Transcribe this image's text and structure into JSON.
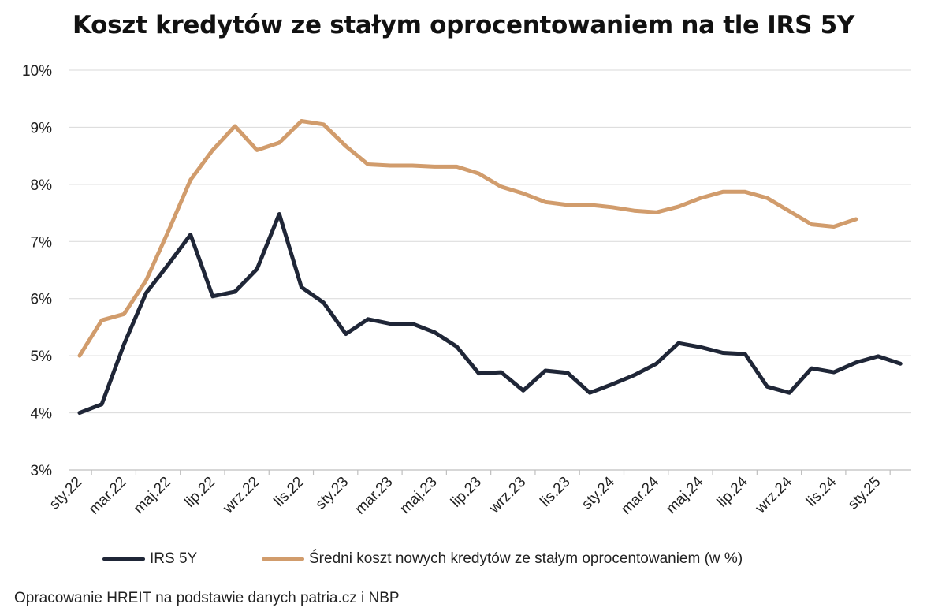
{
  "chart_data": {
    "type": "line",
    "title": "Koszt kredytów ze stałym oprocentowaniem na tle IRS 5Y",
    "xlabel": "",
    "ylabel": "",
    "ylim": [
      3,
      10
    ],
    "y_ticks": [
      "3%",
      "4%",
      "5%",
      "6%",
      "7%",
      "8%",
      "9%",
      "10%"
    ],
    "x_tick_labels": [
      "sty.22",
      "mar.22",
      "maj.22",
      "lip.22",
      "wrz.22",
      "lis.22",
      "sty.23",
      "mar.23",
      "maj.23",
      "lip.23",
      "wrz.23",
      "lis.23",
      "sty.24",
      "mar.24",
      "maj.24",
      "lip.24",
      "wrz.24",
      "lis.24",
      "sty.25"
    ],
    "months": [
      "sty.22",
      "lut.22",
      "mar.22",
      "kwi.22",
      "maj.22",
      "cze.22",
      "lip.22",
      "sie.22",
      "wrz.22",
      "paź.22",
      "lis.22",
      "gru.22",
      "sty.23",
      "lut.23",
      "mar.23",
      "kwi.23",
      "maj.23",
      "cze.23",
      "lip.23",
      "sie.23",
      "wrz.23",
      "paź.23",
      "lis.23",
      "gru.23",
      "sty.24",
      "lut.24",
      "mar.24",
      "kwi.24",
      "maj.24",
      "cze.24",
      "lip.24",
      "sie.24",
      "wrz.24",
      "paź.24",
      "lis.24",
      "gru.24",
      "sty.25",
      "lut.25"
    ],
    "grid": true,
    "legend_position": "bottom",
    "series": [
      {
        "name": "IRS 5Y",
        "color": "#1f2637",
        "values": [
          4.0,
          4.15,
          5.2,
          6.1,
          6.6,
          7.12,
          6.04,
          6.12,
          6.52,
          7.48,
          6.2,
          5.93,
          5.38,
          5.64,
          5.56,
          5.56,
          5.41,
          5.16,
          4.69,
          4.71,
          4.39,
          4.74,
          4.7,
          4.35,
          4.5,
          4.66,
          4.86,
          5.22,
          5.15,
          5.05,
          5.03,
          4.46,
          4.35,
          4.78,
          4.71,
          4.88,
          4.99,
          4.86
        ]
      },
      {
        "name": "Średni koszt nowych kredytów ze stałym oprocentowaniem (w %)",
        "color": "#d19c6c",
        "values": [
          5.0,
          5.62,
          5.73,
          6.32,
          7.18,
          8.08,
          8.6,
          9.02,
          8.6,
          8.73,
          9.11,
          9.05,
          8.67,
          8.35,
          8.33,
          8.33,
          8.31,
          8.31,
          8.19,
          7.96,
          7.84,
          7.69,
          7.64,
          7.64,
          7.6,
          7.54,
          7.51,
          7.61,
          7.76,
          7.87,
          7.87,
          7.76,
          7.53,
          7.3,
          7.26,
          7.39
        ]
      }
    ]
  },
  "legend": {
    "series1_label": "IRS 5Y",
    "series2_label": "Średni koszt nowych kredytów ze stałym oprocentowaniem (w %)"
  },
  "footer": {
    "source": "Opracowanie HREIT na podstawie danych patria.cz i NBP"
  }
}
